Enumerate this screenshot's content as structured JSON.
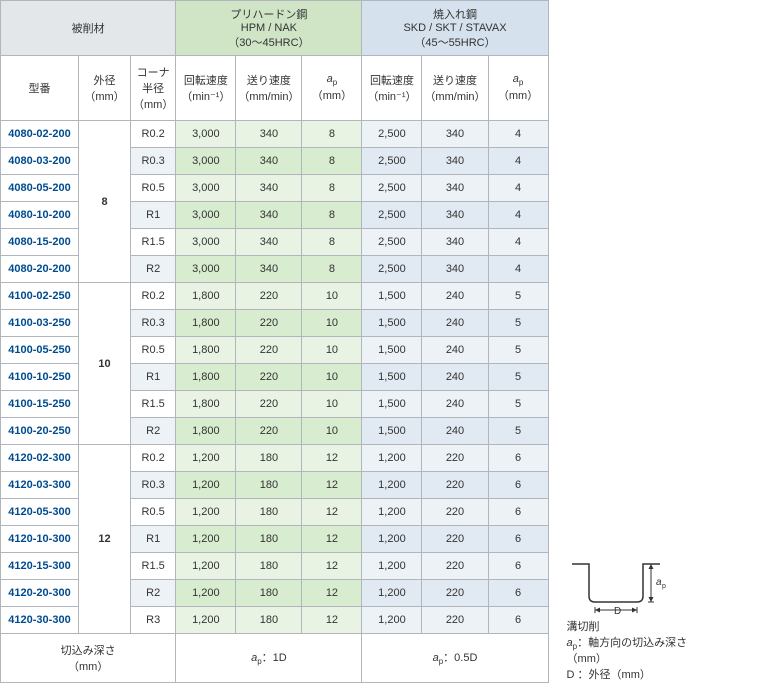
{
  "header": {
    "work": {
      "l1": "被削材"
    },
    "pre": {
      "l1": "プリハードン鋼",
      "l2": "HPM / NAK",
      "l3": "（30～45HRC）"
    },
    "hard": {
      "l1": "焼入れ鋼",
      "l2": "SKD / SKT / STAVAX",
      "l3": "（45～55HRC）"
    },
    "col": {
      "type": "型番",
      "dia_l1": "外径",
      "dia_l2": "（mm）",
      "rad_l1": "コーナ",
      "rad_l2": "半径",
      "rad_l3": "（mm）",
      "speed_l1": "回転速度",
      "speed_unit": "（min⁻¹）",
      "feed_l1": "送り速度",
      "feed_l2": "（mm/min）",
      "ap_sym": "a",
      "ap_sub": "p",
      "ap_unit": "（mm）"
    }
  },
  "footer": {
    "depth_l1": "切込み深さ",
    "depth_l2": "（mm）",
    "pre_val": "：1D",
    "hard_val": "：0.5D"
  },
  "notes": {
    "title": "溝切削",
    "ap": "：軸方向の切込み深さ（mm）",
    "d": "D ：外径（mm）"
  },
  "groups": [
    {
      "dia": "8",
      "rows": [
        {
          "t": "4080-02-200",
          "r": "R0.2",
          "s1": "3,000",
          "f1": "340",
          "a1": "8",
          "s2": "2,500",
          "f2": "340",
          "a2": "4"
        },
        {
          "t": "4080-03-200",
          "r": "R0.3",
          "s1": "3,000",
          "f1": "340",
          "a1": "8",
          "s2": "2,500",
          "f2": "340",
          "a2": "4"
        },
        {
          "t": "4080-05-200",
          "r": "R0.5",
          "s1": "3,000",
          "f1": "340",
          "a1": "8",
          "s2": "2,500",
          "f2": "340",
          "a2": "4"
        },
        {
          "t": "4080-10-200",
          "r": "R1",
          "s1": "3,000",
          "f1": "340",
          "a1": "8",
          "s2": "2,500",
          "f2": "340",
          "a2": "4"
        },
        {
          "t": "4080-15-200",
          "r": "R1.5",
          "s1": "3,000",
          "f1": "340",
          "a1": "8",
          "s2": "2,500",
          "f2": "340",
          "a2": "4"
        },
        {
          "t": "4080-20-200",
          "r": "R2",
          "s1": "3,000",
          "f1": "340",
          "a1": "8",
          "s2": "2,500",
          "f2": "340",
          "a2": "4"
        }
      ]
    },
    {
      "dia": "10",
      "rows": [
        {
          "t": "4100-02-250",
          "r": "R0.2",
          "s1": "1,800",
          "f1": "220",
          "a1": "10",
          "s2": "1,500",
          "f2": "240",
          "a2": "5"
        },
        {
          "t": "4100-03-250",
          "r": "R0.3",
          "s1": "1,800",
          "f1": "220",
          "a1": "10",
          "s2": "1,500",
          "f2": "240",
          "a2": "5"
        },
        {
          "t": "4100-05-250",
          "r": "R0.5",
          "s1": "1,800",
          "f1": "220",
          "a1": "10",
          "s2": "1,500",
          "f2": "240",
          "a2": "5"
        },
        {
          "t": "4100-10-250",
          "r": "R1",
          "s1": "1,800",
          "f1": "220",
          "a1": "10",
          "s2": "1,500",
          "f2": "240",
          "a2": "5"
        },
        {
          "t": "4100-15-250",
          "r": "R1.5",
          "s1": "1,800",
          "f1": "220",
          "a1": "10",
          "s2": "1,500",
          "f2": "240",
          "a2": "5"
        },
        {
          "t": "4100-20-250",
          "r": "R2",
          "s1": "1,800",
          "f1": "220",
          "a1": "10",
          "s2": "1,500",
          "f2": "240",
          "a2": "5"
        }
      ]
    },
    {
      "dia": "12",
      "rows": [
        {
          "t": "4120-02-300",
          "r": "R0.2",
          "s1": "1,200",
          "f1": "180",
          "a1": "12",
          "s2": "1,200",
          "f2": "220",
          "a2": "6"
        },
        {
          "t": "4120-03-300",
          "r": "R0.3",
          "s1": "1,200",
          "f1": "180",
          "a1": "12",
          "s2": "1,200",
          "f2": "220",
          "a2": "6"
        },
        {
          "t": "4120-05-300",
          "r": "R0.5",
          "s1": "1,200",
          "f1": "180",
          "a1": "12",
          "s2": "1,200",
          "f2": "220",
          "a2": "6"
        },
        {
          "t": "4120-10-300",
          "r": "R1",
          "s1": "1,200",
          "f1": "180",
          "a1": "12",
          "s2": "1,200",
          "f2": "220",
          "a2": "6"
        },
        {
          "t": "4120-15-300",
          "r": "R1.5",
          "s1": "1,200",
          "f1": "180",
          "a1": "12",
          "s2": "1,200",
          "f2": "220",
          "a2": "6"
        },
        {
          "t": "4120-20-300",
          "r": "R2",
          "s1": "1,200",
          "f1": "180",
          "a1": "12",
          "s2": "1,200",
          "f2": "220",
          "a2": "6"
        },
        {
          "t": "4120-30-300",
          "r": "R3",
          "s1": "1,200",
          "f1": "180",
          "a1": "12",
          "s2": "1,200",
          "f2": "220",
          "a2": "6"
        }
      ]
    }
  ],
  "colw": {
    "type": 78,
    "dia": 52,
    "rad": 45,
    "val": 60
  }
}
